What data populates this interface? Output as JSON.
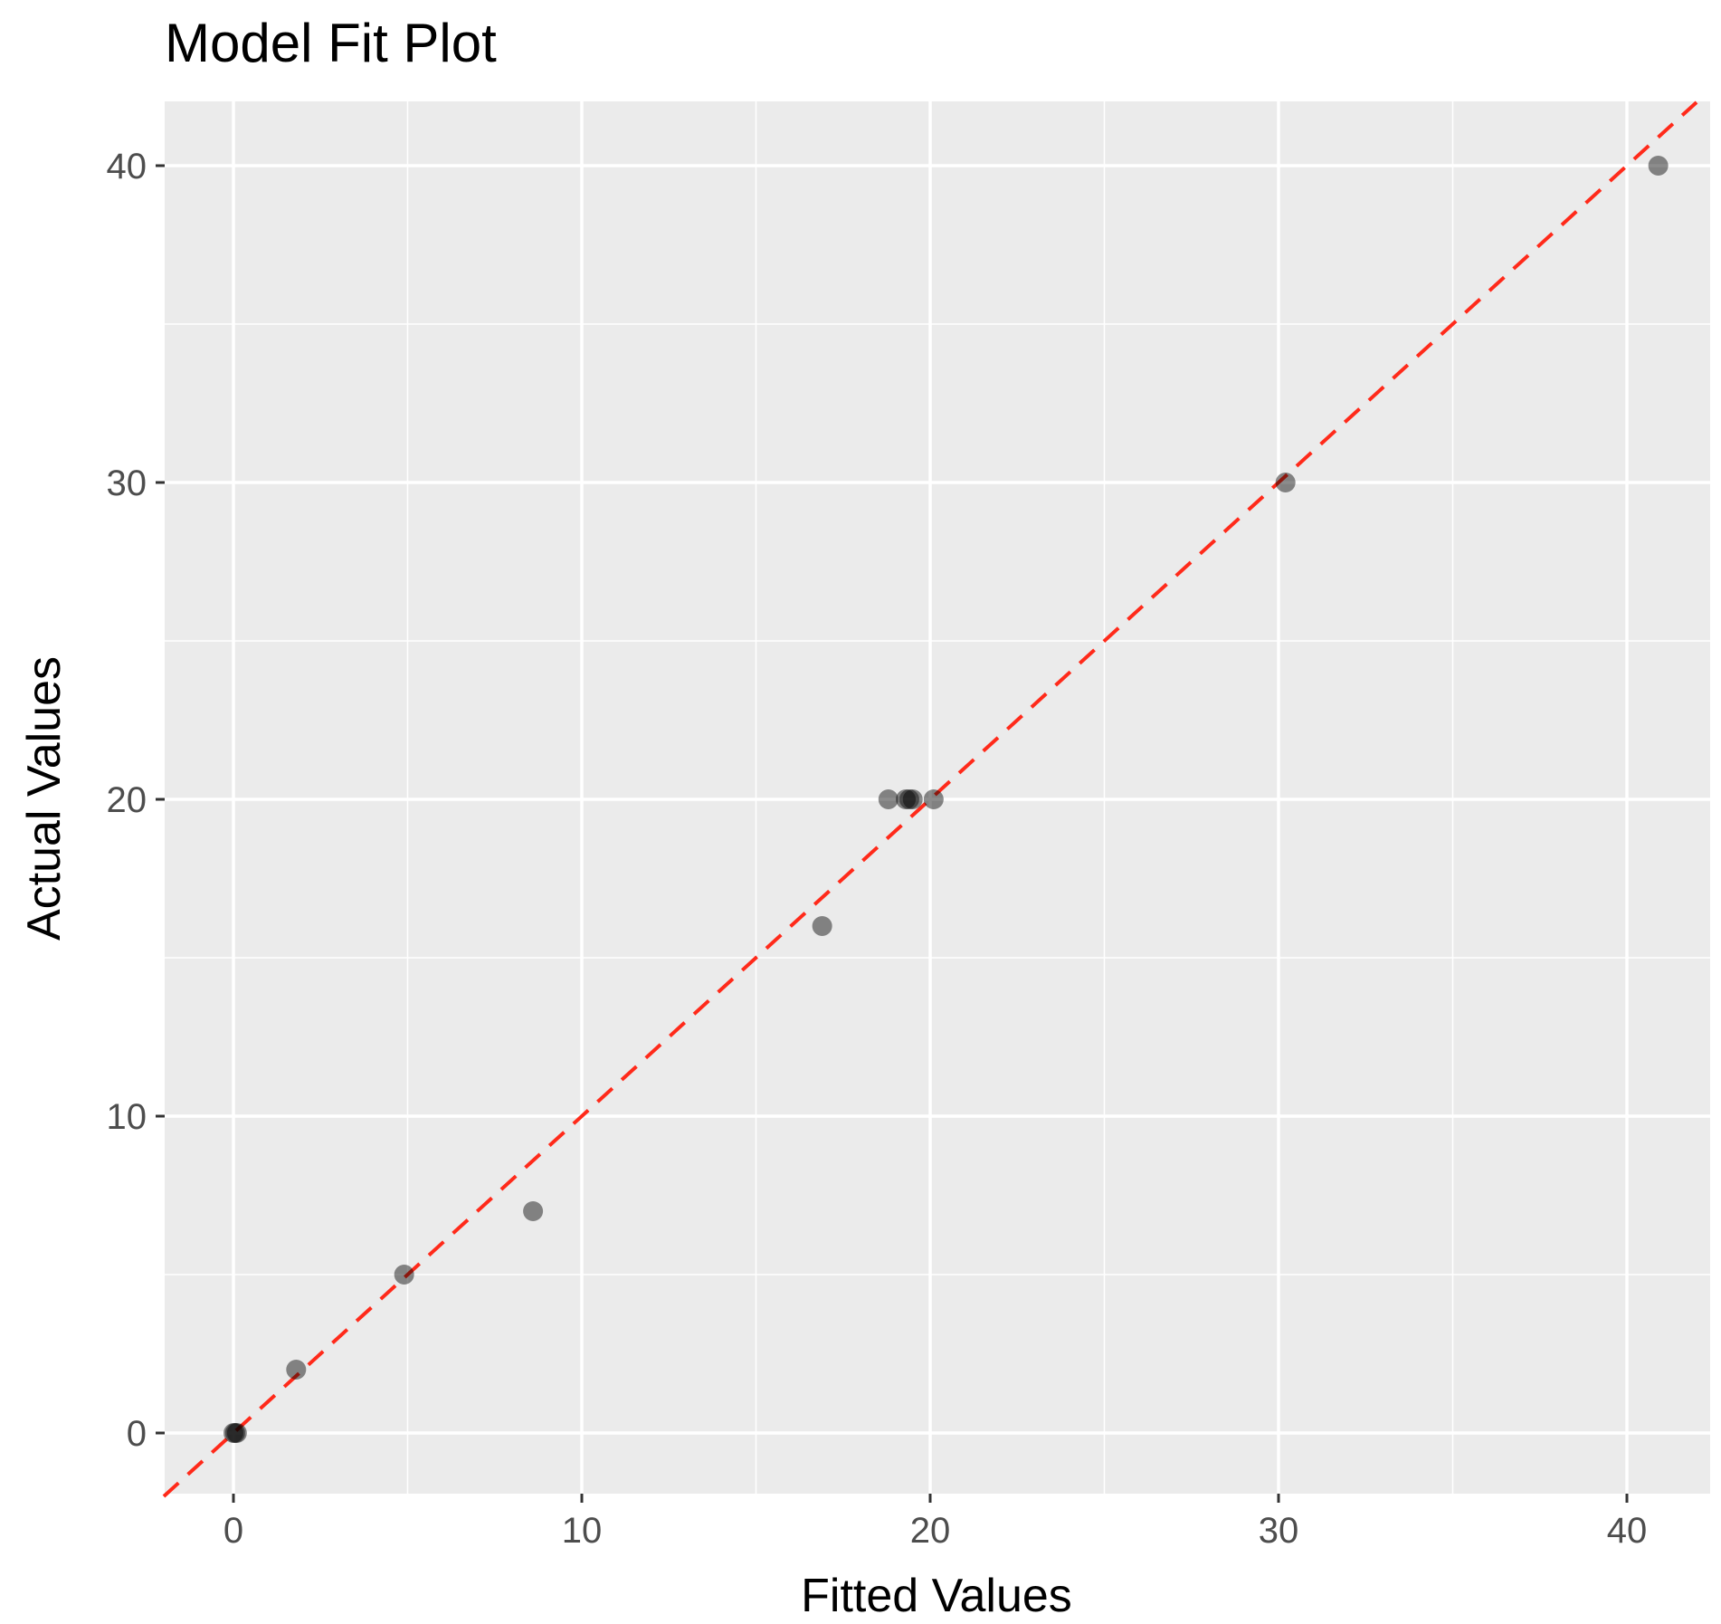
{
  "chart_data": {
    "type": "scatter",
    "title": "Model Fit Plot",
    "xlabel": "Fitted Values",
    "ylabel": "Actual Values",
    "xlim": [
      -2,
      42
    ],
    "ylim": [
      -2,
      42
    ],
    "xticks": [
      0,
      10,
      20,
      30,
      40
    ],
    "yticks": [
      0,
      10,
      20,
      30,
      40
    ],
    "grid": true,
    "reference_line": {
      "type": "y=x",
      "style": "dashed",
      "color": "#ff2a1a"
    },
    "point_color": "#000000",
    "point_opacity": 0.45,
    "panel_background": "#ebebeb",
    "points": [
      {
        "x": 0,
        "y": 0
      },
      {
        "x": 0.05,
        "y": 0
      },
      {
        "x": 0.1,
        "y": 0
      },
      {
        "x": 1.8,
        "y": 2
      },
      {
        "x": 4.9,
        "y": 5
      },
      {
        "x": 8.6,
        "y": 7
      },
      {
        "x": 16.9,
        "y": 16
      },
      {
        "x": 18.8,
        "y": 20
      },
      {
        "x": 19.3,
        "y": 20
      },
      {
        "x": 19.4,
        "y": 20
      },
      {
        "x": 19.5,
        "y": 20
      },
      {
        "x": 20.1,
        "y": 20
      },
      {
        "x": 30.2,
        "y": 30
      },
      {
        "x": 40.9,
        "y": 40
      }
    ]
  }
}
